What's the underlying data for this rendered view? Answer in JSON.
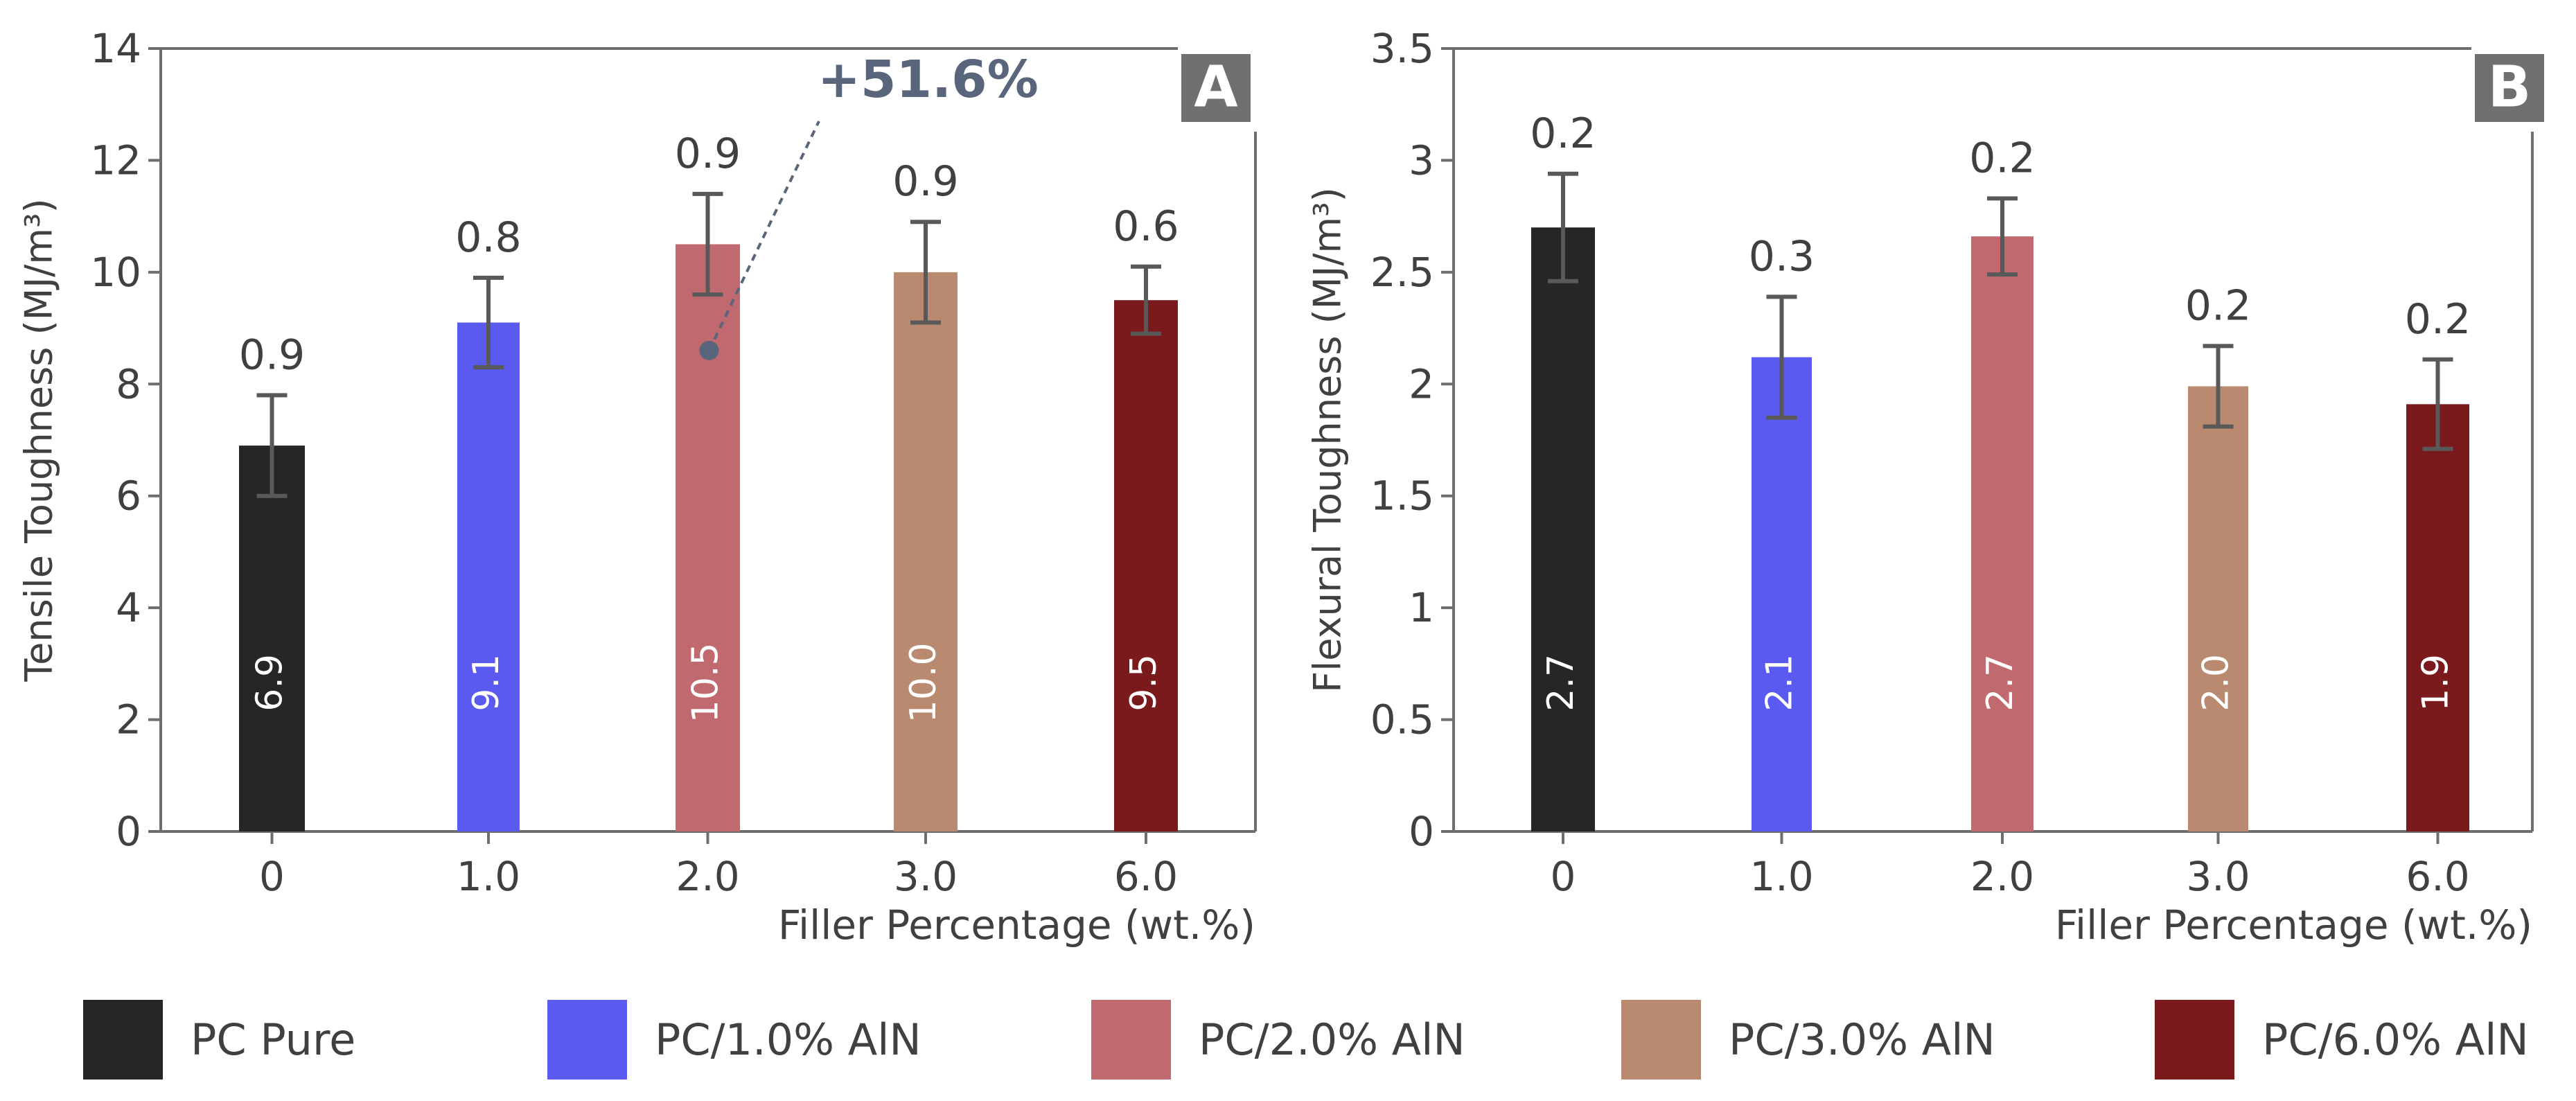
{
  "chart_data": [
    {
      "type": "bar",
      "panel_label": "A",
      "ylabel": "Tensile Toughness (MJ/m³)",
      "xlabel": "Filler Percentage (wt.%)",
      "categories": [
        "0",
        "1.0",
        "2.0",
        "3.0",
        "6.0"
      ],
      "values": [
        6.9,
        9.1,
        10.5,
        10.0,
        9.5
      ],
      "value_labels": [
        "6.9",
        "9.1",
        "10.5",
        "10.0",
        "9.5"
      ],
      "errors": [
        0.9,
        0.8,
        0.9,
        0.9,
        0.6
      ],
      "error_labels": [
        "0.9",
        "0.8",
        "0.9",
        "0.9",
        "0.6"
      ],
      "ylim": [
        0,
        14
      ],
      "yticks": [
        0,
        2,
        4,
        6,
        8,
        10,
        12,
        14
      ],
      "ytick_labels": [
        "0",
        "2",
        "4",
        "6",
        "8",
        "10",
        "12",
        "14"
      ],
      "annotation": {
        "text": "+51.6%",
        "target_category": "2.0",
        "target_value": 8.6
      }
    },
    {
      "type": "bar",
      "panel_label": "B",
      "ylabel": "Flexural Toughness (MJ/m³)",
      "xlabel": "Filler Percentage (wt.%)",
      "categories": [
        "0",
        "1.0",
        "2.0",
        "3.0",
        "6.0"
      ],
      "values": [
        2.7,
        2.12,
        2.66,
        1.99,
        1.91
      ],
      "value_labels": [
        "2.7",
        "2.1",
        "2.7",
        "2.0",
        "1.9"
      ],
      "errors": [
        0.24,
        0.27,
        0.17,
        0.18,
        0.2
      ],
      "error_labels": [
        "0.2",
        "0.3",
        "0.2",
        "0.2",
        "0.2"
      ],
      "ylim": [
        0,
        3.5
      ],
      "yticks": [
        0,
        0.5,
        1,
        1.5,
        2,
        2.5,
        3,
        3.5
      ],
      "ytick_labels": [
        "0",
        "0.5",
        "1",
        "1.5",
        "2",
        "2.5",
        "3",
        "3.5"
      ]
    }
  ],
  "legend": [
    {
      "label": "PC Pure",
      "color": "#262626"
    },
    {
      "label": "PC/1.0% AlN",
      "color": "#5a5af0"
    },
    {
      "label": "PC/2.0% AlN",
      "color": "#c06a70"
    },
    {
      "label": "PC/3.0% AlN",
      "color": "#b98a70"
    },
    {
      "label": "PC/6.0% AlN",
      "color": "#7a1a1c"
    }
  ]
}
